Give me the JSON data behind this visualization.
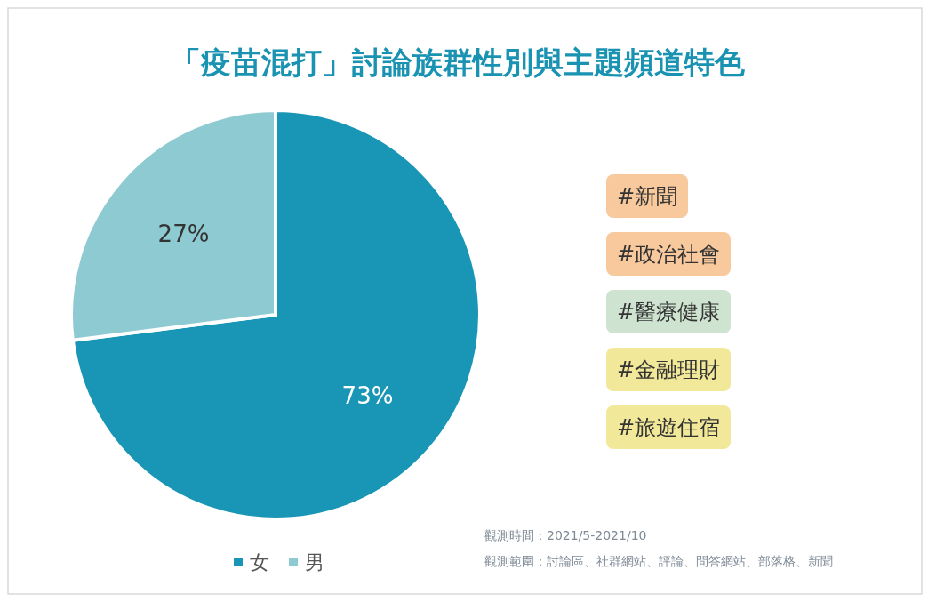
{
  "chart_data": {
    "type": "pie",
    "title": "「疫苗混打」討論族群性別與主題頻道特色",
    "categories": [
      "女",
      "男"
    ],
    "values": [
      73,
      27
    ],
    "colors": [
      "#1995b5",
      "#8ecad1"
    ],
    "value_labels": [
      "73%",
      "27%"
    ],
    "legend": "bottom",
    "annotations": [
      "#新聞",
      "#政治社會",
      "#醫療健康",
      "#金融理財",
      "#旅遊住宿",
      "觀測時間：2021/5-2021/10",
      "觀測範圍：討論區、社群網站、評論、問答網站、部落格、新聞"
    ]
  }
}
